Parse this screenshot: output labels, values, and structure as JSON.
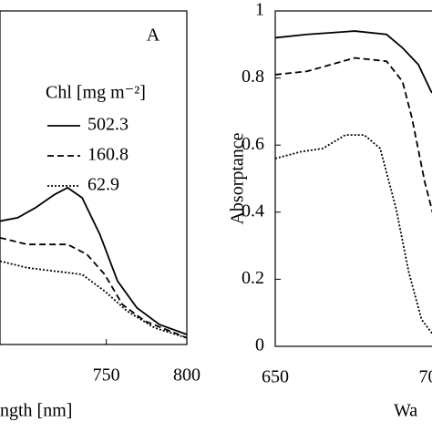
{
  "chart_data": [
    {
      "type": "line",
      "xlabel": "ngth [nm]",
      "annotation": "A",
      "legend_title": "Chl [mg m⁻²]",
      "xlim": [
        684,
        800
      ],
      "ylim": [
        0,
        1
      ],
      "xticks": [
        750,
        800
      ],
      "series": [
        {
          "name": "502.3",
          "color": "#000000",
          "dash": "solid",
          "x": [
            684,
            695,
            706,
            718,
            726,
            735,
            746,
            757,
            769,
            783,
            800
          ],
          "values": [
            0.37,
            0.38,
            0.41,
            0.45,
            0.47,
            0.44,
            0.33,
            0.19,
            0.11,
            0.06,
            0.03
          ]
        },
        {
          "name": "160.8",
          "color": "#000000",
          "dash": "dashed",
          "x": [
            684,
            701,
            712,
            726,
            738,
            749,
            760,
            774,
            800
          ],
          "values": [
            0.32,
            0.3,
            0.3,
            0.3,
            0.27,
            0.21,
            0.12,
            0.07,
            0.02
          ]
        },
        {
          "name": "62.9",
          "color": "#000000",
          "dash": "dotted",
          "x": [
            684,
            701,
            718,
            735,
            749,
            763,
            780,
            800
          ],
          "values": [
            0.25,
            0.23,
            0.22,
            0.21,
            0.16,
            0.1,
            0.05,
            0.02
          ]
        }
      ]
    },
    {
      "type": "line",
      "xlabel": "Wa",
      "ylabel": "Absorptance",
      "xlim": [
        650,
        701
      ],
      "ylim": [
        0,
        1
      ],
      "xticks": [
        650,
        {
          "value": 700,
          "label": "70"
        }
      ],
      "yticks": [
        0,
        0.2,
        0.4,
        0.6,
        0.8,
        1
      ],
      "series": [
        {
          "color": "#000000",
          "dash": "solid",
          "x": [
            650,
            660,
            675,
            685,
            690,
            695,
            699,
            701
          ],
          "values": [
            0.92,
            0.93,
            0.94,
            0.93,
            0.89,
            0.84,
            0.76,
            0.74
          ]
        },
        {
          "color": "#000000",
          "dash": "dashed",
          "x": [
            650,
            660,
            675,
            685,
            690,
            693,
            697,
            700
          ],
          "values": [
            0.81,
            0.82,
            0.86,
            0.85,
            0.79,
            0.68,
            0.49,
            0.38
          ]
        },
        {
          "color": "#000000",
          "dash": "dotted",
          "x": [
            650,
            658,
            665,
            672,
            678,
            683,
            688,
            692,
            696,
            700
          ],
          "values": [
            0.56,
            0.58,
            0.59,
            0.63,
            0.63,
            0.59,
            0.41,
            0.22,
            0.08,
            0.03
          ]
        }
      ]
    }
  ]
}
